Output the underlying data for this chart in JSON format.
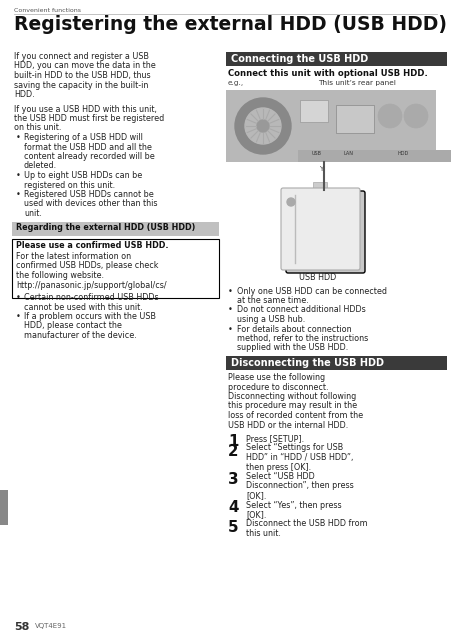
{
  "page_bg": "#ffffff",
  "header_text": "Convenient functions",
  "title": "Registering the external HDD (USB HDD)",
  "body_font_size": 5.8,
  "title_font_size": 13.5,
  "section_header_bg": "#3a3a3a",
  "section_header_color": "#ffffff",
  "section_header_font_size": 7.0,
  "gray_bar_bg": "#c0c0c0",
  "box_border_color": "#000000",
  "footer_page": "58",
  "footer_code": "VQT4E91",
  "left_para1": "If you connect and register a USB HDD, you can move the data in the built-in HDD to the USB HDD, thus saving the capacity in the built-in HDD.",
  "left_para2": "If you use a USB HDD with this unit, the USB HDD must first be registered on this unit.",
  "left_bullets1": [
    "Registering of a USB HDD will format the USB HDD and all the content already recorded will be deleted.",
    "Up to eight USB HDDs can be registered on this unit.",
    "Registered USB HDDs cannot be used with devices other than this unit."
  ],
  "gray_bar_text": "Regarding the external HDD (USB HDD)",
  "box_bold_text": "Please use a confirmed USB HDD.",
  "box_body_text": "For the latest information on confirmed USB HDDs, please check the following website.",
  "box_url": "http://panasonic.jp/support/global/cs/",
  "left_bullets2": [
    "Certain non-confirmed USB HDDs cannot be used with this unit.",
    "If a problem occurs with the USB HDD, please contact the manufacturer of the device."
  ],
  "right_section1_title": "Connecting the USB HDD",
  "right_bold_text": "Connect this unit with optional USB HDD.",
  "eg_label": "e.g.,",
  "rear_panel_label": "This unit’s rear panel",
  "usb_hdd_label": "USB HDD",
  "right_bullets": [
    "Only one USB HDD can be connected at the same time.",
    "Do not connect additional HDDs using a USB hub.",
    "For details about connection method, refer to the instructions supplied with the USB HDD."
  ],
  "right_section2_title": "Disconnecting the USB HDD",
  "disconnect_intro": "Please use the following procedure to disconnect. Disconnecting without following this procedure may result in the loss of recorded content from the USB HDD or the internal HDD.",
  "steps": [
    "Press [SETUP].",
    "Select “Settings for USB HDD” in “HDD / USB HDD”, then press [OK].",
    "Select “USB HDD Disconnection”, then press [OK].",
    "Select “Yes”, then press [OK].",
    "Disconnect the USB HDD from this unit."
  ]
}
